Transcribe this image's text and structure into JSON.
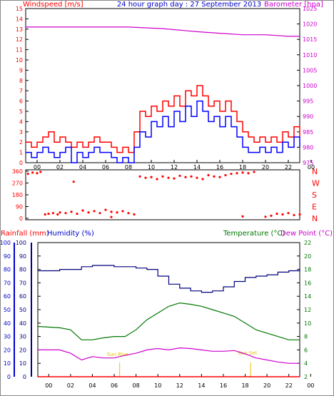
{
  "header": {
    "title": "24 hour graph day : 27 September 2013",
    "windspeed_label": "Windspeed [m/s]",
    "barometer_label": "Barometer [hpa]"
  },
  "bottom_header": {
    "rainfall_label": "Rainfall (mm)",
    "humidity_label": "Humidity (%)",
    "temperature_label": "Temperature (°C)",
    "dewpoint_label": "Dew Point (°C)"
  },
  "annotations": {
    "sunrise": "Sun Rise",
    "sunset": "Sun Set"
  },
  "colors": {
    "wind": "#ff0000",
    "gust": "#0000ff",
    "barometer": "#cc00cc",
    "humidity": "#000080",
    "temperature": "#007700",
    "dewpoint": "#cc00cc",
    "rain": "#ff0000",
    "sun": "#e6c200"
  },
  "chart_data": [
    {
      "type": "line",
      "name": "wind-pressure",
      "title": "24 hour graph day : 27 September 2013",
      "xlabel": "",
      "x_ticks": [
        "00",
        "02",
        "04",
        "06",
        "08",
        "10",
        "12",
        "14",
        "16",
        "18",
        "20",
        "22",
        "00"
      ],
      "hour_range": [
        23,
        47
      ],
      "ylim_left": [
        0,
        15
      ],
      "ylim_right": [
        975,
        1025
      ],
      "yticks_left": [
        0,
        1,
        2,
        3,
        4,
        5,
        6,
        7,
        8,
        9,
        10,
        11,
        12,
        13,
        14,
        15
      ],
      "yticks_right": [
        975,
        980,
        985,
        990,
        995,
        1000,
        1005,
        1010,
        1015,
        1020,
        1025
      ],
      "grid": false,
      "series": [
        {
          "name": "Windspeed",
          "axis": "left",
          "hours": [
            23,
            23.5,
            24,
            24.5,
            25,
            25.5,
            26,
            26.5,
            27,
            27.5,
            28,
            28.5,
            29,
            29.5,
            30,
            30.5,
            31,
            31.5,
            32,
            32.5,
            33,
            33.5,
            34,
            34.5,
            35,
            35.5,
            36,
            36.5,
            37,
            37.5,
            38,
            38.5,
            39,
            39.5,
            40,
            40.5,
            41,
            41.5,
            42,
            42.5,
            43,
            43.5,
            44,
            44.5,
            45,
            45.5,
            46,
            46.5,
            47
          ],
          "values": [
            2,
            1.5,
            2,
            2.5,
            3,
            2,
            2.5,
            2,
            1.5,
            2,
            1.5,
            2,
            2.5,
            2,
            2,
            1.5,
            1,
            1.5,
            1,
            3,
            5,
            4.5,
            5.5,
            5,
            6,
            5.5,
            6.5,
            5.5,
            7,
            6.5,
            7.5,
            6.5,
            5.5,
            6,
            5,
            6,
            5,
            4,
            3,
            2.5,
            2,
            2.5,
            2,
            2.5,
            2,
            3,
            2.5,
            3.5,
            2.5
          ]
        },
        {
          "name": "Gust",
          "axis": "left",
          "hours": [
            23,
            23.5,
            24,
            24.5,
            25,
            25.5,
            26,
            26.5,
            27,
            27.5,
            28,
            28.5,
            29,
            29.5,
            30,
            30.5,
            31,
            31.5,
            32,
            32.5,
            33,
            33.5,
            34,
            34.5,
            35,
            35.5,
            36,
            36.5,
            37,
            37.5,
            38,
            38.5,
            39,
            39.5,
            40,
            40.5,
            41,
            41.5,
            42,
            42.5,
            43,
            43.5,
            44,
            44.5,
            45,
            45.5,
            46,
            46.5,
            47
          ],
          "values": [
            1,
            0.5,
            1,
            1.5,
            1,
            0.5,
            1,
            1.5,
            0,
            1,
            0.5,
            1,
            1.5,
            1,
            1,
            0.5,
            0,
            0.5,
            0,
            1.5,
            3,
            2.5,
            4,
            3.5,
            4.5,
            3.5,
            5,
            4,
            5.5,
            4.5,
            6,
            5,
            4,
            4.5,
            3.5,
            4.5,
            3.5,
            2.5,
            1.5,
            1,
            1,
            1.5,
            1,
            1.5,
            1,
            2,
            1.5,
            2.5,
            1.5
          ]
        },
        {
          "name": "Barometer",
          "axis": "right",
          "hours": [
            23,
            26,
            29,
            32,
            35,
            38,
            40,
            42,
            44,
            46,
            47
          ],
          "values": [
            1019,
            1019,
            1019,
            1019,
            1018.5,
            1017.5,
            1017,
            1016.5,
            1016.5,
            1016,
            1016
          ]
        }
      ]
    },
    {
      "type": "scatter",
      "name": "wind-direction",
      "xlabel": "",
      "ylim": [
        0,
        360
      ],
      "yticks": [
        0,
        90,
        180,
        270,
        360
      ],
      "compass_labels": [
        "N",
        "W",
        "S",
        "E",
        "N"
      ],
      "series": [
        {
          "name": "Direction",
          "hours": [
            23.2,
            23.6,
            24,
            24.3,
            24.7,
            25,
            25.4,
            25.8,
            26,
            26.5,
            27,
            27.5,
            28,
            28.5,
            29,
            29.5,
            30,
            30.5,
            31,
            31.5,
            32,
            32.5,
            33,
            33.5,
            34,
            34.5,
            35,
            35.5,
            36,
            36.5,
            37,
            37.5,
            38,
            38.5,
            39,
            39.5,
            40,
            40.5,
            41,
            41.5,
            42,
            42.5,
            43,
            44.5,
            45,
            45.5,
            46,
            46.5,
            47,
            27.2,
            30.5,
            42,
            44
          ],
          "values": [
            340,
            350,
            345,
            355,
            30,
            35,
            40,
            30,
            45,
            40,
            50,
            35,
            60,
            45,
            55,
            40,
            65,
            50,
            45,
            55,
            40,
            30,
            320,
            310,
            315,
            300,
            320,
            310,
            305,
            325,
            315,
            320,
            310,
            300,
            330,
            320,
            315,
            330,
            340,
            345,
            350,
            345,
            355,
            20,
            35,
            30,
            40,
            25,
            30,
            280,
            10,
            15,
            12
          ]
        }
      ]
    },
    {
      "type": "line",
      "name": "rain-humidity-temperature",
      "xlabel": "",
      "ylim_rain": [
        0,
        100
      ],
      "ylim_humidity": [
        0,
        100
      ],
      "ylim_temp": [
        2,
        22
      ],
      "yticks_rain": [
        0,
        10,
        20,
        30,
        40,
        50,
        60,
        70,
        80,
        90,
        100
      ],
      "yticks_temp": [
        2,
        4,
        6,
        8,
        10,
        12,
        14,
        16,
        18,
        20,
        22
      ],
      "sunrise_hour": 30.5,
      "sunset_hour": 42.5,
      "series": [
        {
          "name": "Humidity",
          "axis": "humidity",
          "hours": [
            23,
            25,
            27,
            28,
            30,
            31,
            32,
            33,
            34,
            35,
            36,
            37,
            38,
            39,
            40,
            41,
            42,
            43,
            44,
            45,
            46,
            47
          ],
          "values": [
            79,
            80,
            82,
            83,
            82,
            82,
            81,
            80,
            75,
            69,
            66,
            64,
            63,
            64,
            67,
            71,
            74,
            75,
            76,
            78,
            79,
            81
          ]
        },
        {
          "name": "Temperature",
          "axis": "temp",
          "hours": [
            23,
            25,
            26,
            27,
            28,
            29,
            30,
            31,
            32,
            33,
            34,
            35,
            36,
            37,
            38,
            39,
            40,
            41,
            42,
            43,
            44,
            45,
            46,
            47
          ],
          "values": [
            9.5,
            9.3,
            9,
            7.5,
            7.5,
            7.8,
            8,
            8,
            9,
            10.5,
            11.5,
            12.5,
            13,
            12.8,
            12.5,
            12,
            11.5,
            11,
            10,
            9,
            8.5,
            8,
            7.5,
            7.5
          ]
        },
        {
          "name": "Dew Point",
          "axis": "temp",
          "hours": [
            23,
            25,
            26,
            27,
            28,
            29,
            30,
            31,
            32,
            33,
            34,
            35,
            36,
            37,
            38,
            39,
            40,
            41,
            42,
            43,
            44,
            45,
            46,
            47
          ],
          "values": [
            6,
            6,
            5.5,
            4.5,
            5,
            4.8,
            4.8,
            5.2,
            5.5,
            6,
            6.2,
            6,
            6.3,
            6.2,
            6,
            5.8,
            5.8,
            5.9,
            5.4,
            4.8,
            4.5,
            4.2,
            4,
            4
          ]
        },
        {
          "name": "Rainfall",
          "axis": "rain",
          "hours": [
            23,
            47
          ],
          "values": [
            0,
            0
          ]
        }
      ]
    }
  ]
}
